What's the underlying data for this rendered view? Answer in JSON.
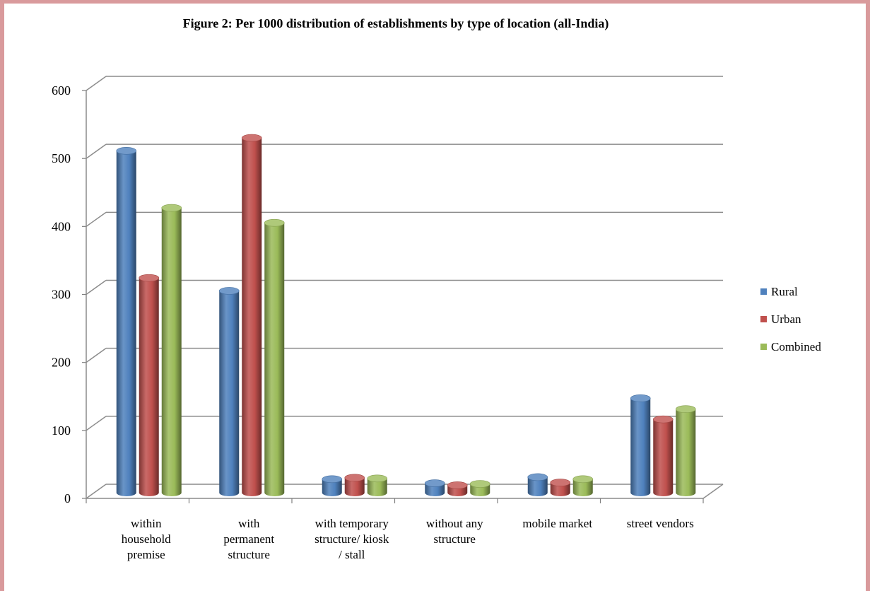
{
  "chart_data": {
    "type": "bar",
    "title": "Figure 2: Per 1000 distribution of establishments by type of location (all-India)",
    "categories": [
      [
        "within",
        "household",
        "premise"
      ],
      [
        "with",
        "permanent",
        "structure"
      ],
      [
        "with temporary",
        "structure/ kiosk",
        "/ stall"
      ],
      [
        "without any",
        "structure"
      ],
      [
        "mobile market"
      ],
      [
        "street vendors"
      ]
    ],
    "series": [
      {
        "name": "Rural",
        "color": "#4f81bd",
        "values": [
          503,
          297,
          20,
          14,
          23,
          139
        ]
      },
      {
        "name": "Urban",
        "color": "#c0504d",
        "values": [
          316,
          522,
          22,
          11,
          15,
          108
        ]
      },
      {
        "name": "Combined",
        "color": "#9bbb59",
        "values": [
          419,
          397,
          21,
          13,
          20,
          123
        ]
      }
    ],
    "ylim": [
      0,
      600
    ],
    "yticks": [
      0,
      100,
      200,
      300,
      400,
      500,
      600
    ],
    "legend_position": "right",
    "grid": true,
    "style": "3d-cylinder"
  }
}
